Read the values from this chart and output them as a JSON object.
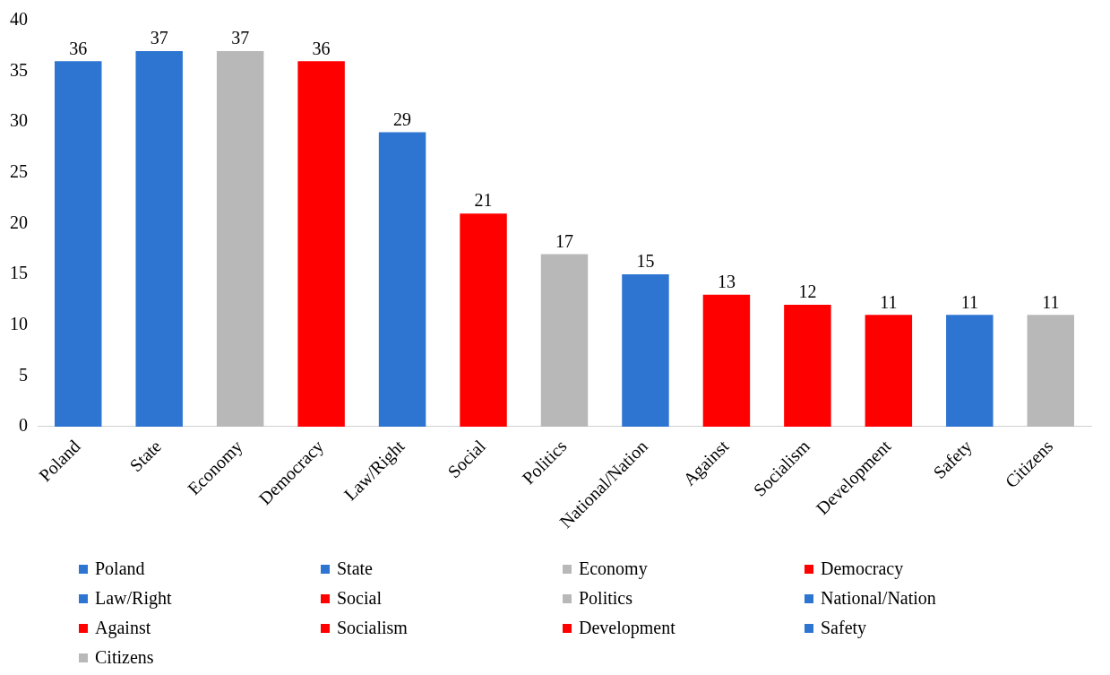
{
  "chart_data": {
    "type": "bar",
    "stacked": true,
    "categories": [
      "Poland",
      "State",
      "Economy",
      "Democracy",
      "Law/Right",
      "Social",
      "Politics",
      "National/Nation",
      "Against",
      "Socialism",
      "Development",
      "Safety",
      "Citizens"
    ],
    "series": [
      {
        "name": "Poland",
        "color": "#2e75d2",
        "values": [
          36,
          null,
          null,
          null,
          null,
          null,
          null,
          null,
          null,
          null,
          null,
          null,
          null
        ]
      },
      {
        "name": "State",
        "color": "#2e75d2",
        "values": [
          null,
          37,
          null,
          null,
          null,
          null,
          null,
          null,
          null,
          null,
          null,
          null,
          null
        ]
      },
      {
        "name": "Economy",
        "color": "#b8b8b8",
        "values": [
          null,
          null,
          37,
          null,
          null,
          null,
          null,
          null,
          null,
          null,
          null,
          null,
          null
        ]
      },
      {
        "name": "Democracy",
        "color": "#ff0000",
        "values": [
          null,
          null,
          null,
          36,
          null,
          null,
          null,
          null,
          null,
          null,
          null,
          null,
          null
        ]
      },
      {
        "name": "Law/Right",
        "color": "#2e75d2",
        "values": [
          null,
          null,
          null,
          null,
          29,
          null,
          null,
          null,
          null,
          null,
          null,
          null,
          null
        ]
      },
      {
        "name": "Social",
        "color": "#ff0000",
        "values": [
          null,
          null,
          null,
          null,
          null,
          21,
          null,
          null,
          null,
          null,
          null,
          null,
          null
        ]
      },
      {
        "name": "Politics",
        "color": "#b8b8b8",
        "values": [
          null,
          null,
          null,
          null,
          null,
          null,
          17,
          null,
          null,
          null,
          null,
          null,
          null
        ]
      },
      {
        "name": "National/Nation",
        "color": "#2e75d2",
        "values": [
          null,
          null,
          null,
          null,
          null,
          null,
          null,
          15,
          null,
          null,
          null,
          null,
          null
        ]
      },
      {
        "name": "Against",
        "color": "#ff0000",
        "values": [
          null,
          null,
          null,
          null,
          null,
          null,
          null,
          null,
          13,
          null,
          null,
          null,
          null
        ]
      },
      {
        "name": "Socialism",
        "color": "#ff0000",
        "values": [
          null,
          null,
          null,
          null,
          null,
          null,
          null,
          null,
          null,
          12,
          null,
          null,
          null
        ]
      },
      {
        "name": "Development",
        "color": "#ff0000",
        "values": [
          null,
          null,
          null,
          null,
          null,
          null,
          null,
          null,
          null,
          null,
          11,
          null,
          null
        ]
      },
      {
        "name": "Safety",
        "color": "#2e75d2",
        "values": [
          null,
          null,
          null,
          null,
          null,
          null,
          null,
          null,
          null,
          null,
          null,
          11,
          null
        ]
      },
      {
        "name": "Citizens",
        "color": "#b8b8b8",
        "values": [
          null,
          null,
          null,
          null,
          null,
          null,
          null,
          null,
          null,
          null,
          null,
          null,
          11
        ]
      }
    ],
    "ylim": [
      0,
      40
    ],
    "yticks": [
      0,
      5,
      10,
      15,
      20,
      25,
      30,
      35,
      40
    ],
    "grid": false,
    "legend": "bottom",
    "data_labels": true
  }
}
